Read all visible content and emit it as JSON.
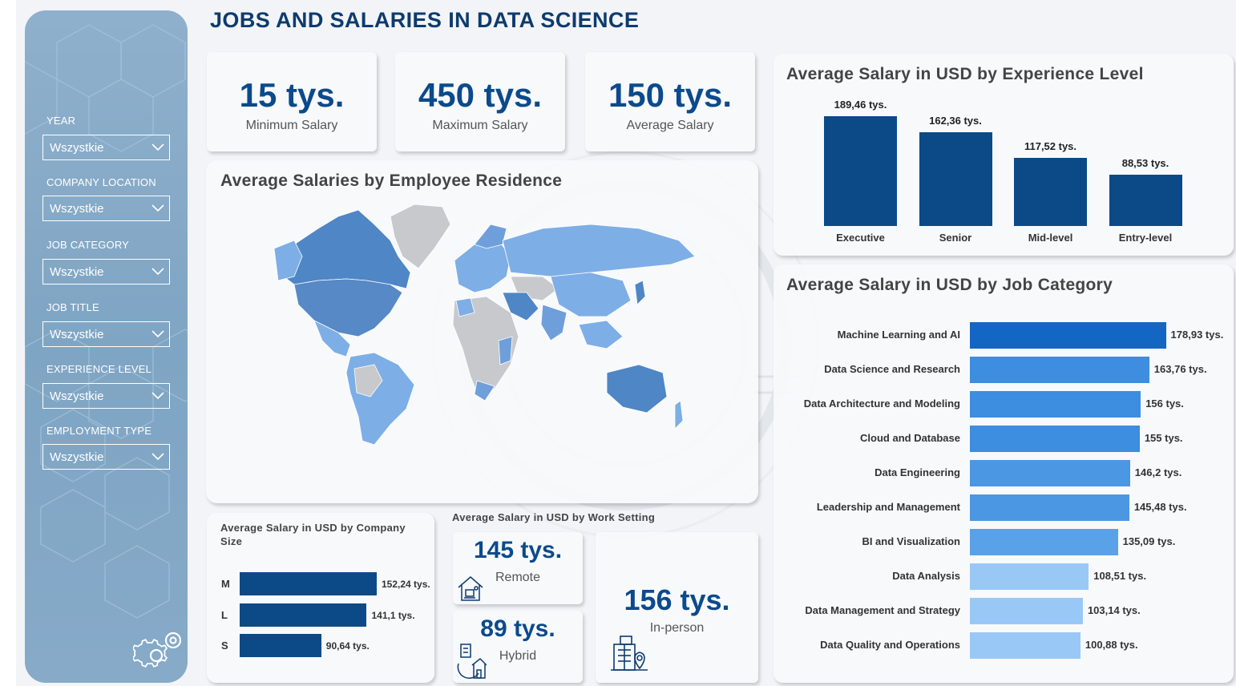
{
  "title": "JOBS AND SALARIES IN DATA SCIENCE",
  "filters": [
    {
      "label": "YEAR",
      "value": "Wszystkie"
    },
    {
      "label": "COMPANY LOCATION",
      "value": "Wszystkie"
    },
    {
      "label": "JOB CATEGORY",
      "value": "Wszystkie"
    },
    {
      "label": "JOB TITLE",
      "value": "Wszystkie"
    },
    {
      "label": "EXPERIENCE LEVEL",
      "value": "Wszystkie"
    },
    {
      "label": "EMPLOYMENT TYPE",
      "value": "Wszystkie"
    }
  ],
  "kpis": [
    {
      "value": "15 tys.",
      "label": "Minimum Salary"
    },
    {
      "value": "450 tys.",
      "label": "Maximum Salary"
    },
    {
      "value": "150 tys.",
      "label": "Average Salary"
    }
  ],
  "map": {
    "title": "Average Salaries by Employee Residence"
  },
  "experience": {
    "title": "Average Salary in USD by Experience Level",
    "color": "#0b4a86",
    "bars": [
      {
        "category": "Executive",
        "value": 189.46,
        "label": "189,46 tys."
      },
      {
        "category": "Senior",
        "value": 162.36,
        "label": "162,36 tys."
      },
      {
        "category": "Mid-level",
        "value": 117.52,
        "label": "117,52 tys."
      },
      {
        "category": "Entry-level",
        "value": 88.53,
        "label": "88,53 tys."
      }
    ]
  },
  "job_category": {
    "title": "Average Salary in USD by Job Category",
    "bars": [
      {
        "category": "Machine Learning and AI",
        "value": 178.93,
        "label": "178,93 tys.",
        "color": "#1466c4"
      },
      {
        "category": "Data Science and Research",
        "value": 163.76,
        "label": "163,76 tys.",
        "color": "#3d8de0"
      },
      {
        "category": "Data Architecture and Modeling",
        "value": 156,
        "label": "156 tys.",
        "color": "#3d8de0"
      },
      {
        "category": "Cloud and Database",
        "value": 155,
        "label": "155 tys.",
        "color": "#3d8de0"
      },
      {
        "category": "Data Engineering",
        "value": 146.2,
        "label": "146,2 tys.",
        "color": "#4b97e4"
      },
      {
        "category": "Leadership and Management",
        "value": 145.48,
        "label": "145,48 tys.",
        "color": "#4b97e4"
      },
      {
        "category": "BI and Visualization",
        "value": 135.09,
        "label": "135,09 tys.",
        "color": "#5aa2e8"
      },
      {
        "category": "Data Analysis",
        "value": 108.51,
        "label": "108,51 tys.",
        "color": "#9ac8f6"
      },
      {
        "category": "Data Management and Strategy",
        "value": 103.14,
        "label": "103,14 tys.",
        "color": "#9ac8f6"
      },
      {
        "category": "Data Quality and Operations",
        "value": 100.88,
        "label": "100,88 tys.",
        "color": "#9ac8f6"
      }
    ]
  },
  "company_size": {
    "title": "Average Salary in USD by Company Size",
    "color": "#0b4a86",
    "bars": [
      {
        "category": "M",
        "value": 152.24,
        "label": "152,24 tys."
      },
      {
        "category": "L",
        "value": 141.1,
        "label": "141,1 tys."
      },
      {
        "category": "S",
        "value": 90.64,
        "label": "90,64 tys."
      }
    ]
  },
  "work_setting": {
    "title": "Average Salary in USD by Work Setting",
    "items": [
      {
        "value": "145 tys.",
        "label": "Remote",
        "icon": "remote-house-icon"
      },
      {
        "value": "89 tys.",
        "label": "Hybrid",
        "icon": "hybrid-icon"
      },
      {
        "value": "156 tys.",
        "label": "In-person",
        "icon": "office-building-icon"
      }
    ]
  },
  "chart_data": [
    {
      "type": "bar",
      "title": "Average Salary in USD by Experience Level",
      "categories": [
        "Executive",
        "Senior",
        "Mid-level",
        "Entry-level"
      ],
      "values": [
        189.46,
        162.36,
        117.52,
        88.53
      ]
    },
    {
      "type": "bar",
      "title": "Average Salary in USD by Job Category",
      "categories": [
        "Machine Learning and AI",
        "Data Science and Research",
        "Data Architecture and Modeling",
        "Cloud and Database",
        "Data Engineering",
        "Leadership and Management",
        "BI and Visualization",
        "Data Analysis",
        "Data Management and Strategy",
        "Data Quality and Operations"
      ],
      "values": [
        178.93,
        163.76,
        156,
        155,
        146.2,
        145.48,
        135.09,
        108.51,
        103.14,
        100.88
      ]
    },
    {
      "type": "bar",
      "title": "Average Salary in USD by Company Size",
      "categories": [
        "M",
        "L",
        "S"
      ],
      "values": [
        152.24,
        141.1,
        90.64
      ]
    }
  ]
}
